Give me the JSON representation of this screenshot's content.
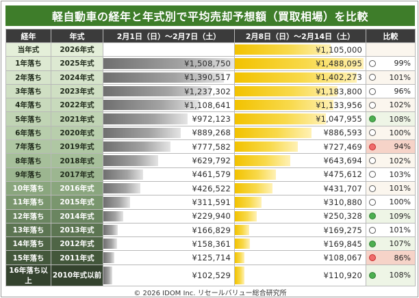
{
  "title": "軽自動車の経年と年式別で平均売却予想額（買取相場）を比較",
  "headers": {
    "age": "経年",
    "year": "年式",
    "prev": "2月1日（日）～2月7日（土）",
    "curr": "2月8日（日）～2月14日（土）",
    "ratio": "比較"
  },
  "colors": {
    "title_bg": "#3e7d2a",
    "header_bg": "#3b3b3b",
    "prev_bar": "#8a8a8a",
    "curr_bar": "#f5c400",
    "up_dot": "#4caf50",
    "down_dot": "#ef6b6b"
  },
  "chart_data": {
    "type": "bar",
    "title": "軽自動車の経年と年式別で平均売却予想額（買取相場）を比較",
    "series": [
      {
        "name": "2月1日（日）～2月7日（土）",
        "values": [
          null,
          1508750,
          1390517,
          1237302,
          1108641,
          972123,
          889268,
          777582,
          629792,
          461579,
          426522,
          311591,
          229940,
          166829,
          158361,
          125714,
          102529
        ]
      },
      {
        "name": "2月8日（日）～2月14日（土）",
        "values": [
          1105000,
          1488095,
          1402273,
          1183800,
          1133956,
          1047955,
          886593,
          727469,
          643694,
          475612,
          431707,
          310880,
          250328,
          169275,
          169845,
          108067,
          110920
        ]
      }
    ],
    "rows": [
      {
        "age": "当年式",
        "year": "2026年式",
        "prev": "",
        "curr": "¥1,105,000",
        "prev_value": null,
        "curr_value": 1105000,
        "ratio": "",
        "dot": "none",
        "shade": "#e4efd9",
        "dark": false
      },
      {
        "age": "1年落ち",
        "year": "2025年式",
        "prev": "¥1,508,750",
        "curr": "¥1,488,095",
        "prev_value": 1508750,
        "curr_value": 1488095,
        "ratio": "99%",
        "dot": "white",
        "shade": "#dde9d2",
        "dark": false
      },
      {
        "age": "2年落ち",
        "year": "2024年式",
        "prev": "¥1,390,517",
        "curr": "¥1,402,273",
        "prev_value": 1390517,
        "curr_value": 1402273,
        "ratio": "101%",
        "dot": "white",
        "shade": "#d6e4cb",
        "dark": false
      },
      {
        "age": "3年落ち",
        "year": "2023年式",
        "prev": "¥1,237,302",
        "curr": "¥1,183,800",
        "prev_value": 1237302,
        "curr_value": 1183800,
        "ratio": "96%",
        "dot": "white",
        "shade": "#cfdfc3",
        "dark": false
      },
      {
        "age": "4年落ち",
        "year": "2022年式",
        "prev": "¥1,108,641",
        "curr": "¥1,133,956",
        "prev_value": 1108641,
        "curr_value": 1133956,
        "ratio": "102%",
        "dot": "white",
        "shade": "#c8dabc",
        "dark": false
      },
      {
        "age": "5年落ち",
        "year": "2021年式",
        "prev": "¥972,123",
        "curr": "¥1,047,955",
        "prev_value": 972123,
        "curr_value": 1047955,
        "ratio": "108%",
        "dot": "green",
        "shade": "#c0d4b4",
        "dark": false
      },
      {
        "age": "6年落ち",
        "year": "2020年式",
        "prev": "¥889,268",
        "curr": "¥886,593",
        "prev_value": 889268,
        "curr_value": 886593,
        "ratio": "100%",
        "dot": "white",
        "shade": "#b8ceac",
        "dark": false
      },
      {
        "age": "7年落ち",
        "year": "2019年式",
        "prev": "¥777,582",
        "curr": "¥727,469",
        "prev_value": 777582,
        "curr_value": 727469,
        "ratio": "94%",
        "dot": "red",
        "shade": "#afc7a3",
        "dark": false
      },
      {
        "age": "8年落ち",
        "year": "2018年式",
        "prev": "¥629,792",
        "curr": "¥643,694",
        "prev_value": 629792,
        "curr_value": 643694,
        "ratio": "102%",
        "dot": "white",
        "shade": "#a6bf9a",
        "dark": false
      },
      {
        "age": "9年落ち",
        "year": "2017年式",
        "prev": "¥461,579",
        "curr": "¥475,612",
        "prev_value": 461579,
        "curr_value": 475612,
        "ratio": "103%",
        "dot": "white",
        "shade": "#9cb690",
        "dark": false
      },
      {
        "age": "10年落ち",
        "year": "2016年式",
        "prev": "¥426,522",
        "curr": "¥431,707",
        "prev_value": 426522,
        "curr_value": 431707,
        "ratio": "101%",
        "dot": "white",
        "shade": "#8aa67e",
        "dark": true
      },
      {
        "age": "11年落ち",
        "year": "2015年式",
        "prev": "¥311,591",
        "curr": "¥310,880",
        "prev_value": 311591,
        "curr_value": 310880,
        "ratio": "100%",
        "dot": "white",
        "shade": "#7a966e",
        "dark": true
      },
      {
        "age": "12年落ち",
        "year": "2014年式",
        "prev": "¥229,940",
        "curr": "¥250,328",
        "prev_value": 229940,
        "curr_value": 250328,
        "ratio": "109%",
        "dot": "green",
        "shade": "#6a8560",
        "dark": true
      },
      {
        "age": "13年落ち",
        "year": "2013年式",
        "prev": "¥166,829",
        "curr": "¥169,275",
        "prev_value": 166829,
        "curr_value": 169275,
        "ratio": "101%",
        "dot": "white",
        "shade": "#5c7552",
        "dark": true
      },
      {
        "age": "14年落ち",
        "year": "2012年式",
        "prev": "¥158,361",
        "curr": "¥169,845",
        "prev_value": 158361,
        "curr_value": 169845,
        "ratio": "107%",
        "dot": "green",
        "shade": "#4f6546",
        "dark": true
      },
      {
        "age": "15年落ち",
        "year": "2011年式",
        "prev": "¥125,714",
        "curr": "¥108,067",
        "prev_value": 125714,
        "curr_value": 108067,
        "ratio": "86%",
        "dot": "red",
        "shade": "#43573b",
        "dark": true
      },
      {
        "age": "16年落ち以上",
        "year": "2010年式以前",
        "prev": "¥102,529",
        "curr": "¥110,920",
        "prev_value": 102529,
        "curr_value": 110920,
        "ratio": "108%",
        "dot": "green",
        "shade": "#34432e",
        "dark": true
      }
    ]
  },
  "footer": "© 2026 IDOM Inc. リセールバリュー総合研究所"
}
